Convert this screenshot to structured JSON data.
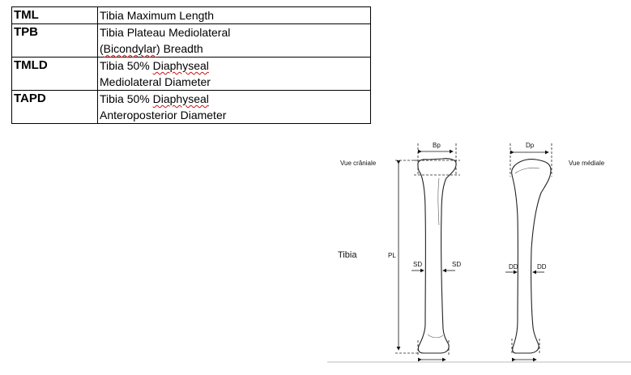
{
  "table": {
    "rows": [
      {
        "code": "TML",
        "desc_lines": [
          [
            "Tibia Maximum Length"
          ]
        ]
      },
      {
        "code": "TPB",
        "desc_lines": [
          [
            "Tibia Plateau Mediolateral"
          ],
          [
            "(",
            "Bicondylar",
            ") Breadth"
          ]
        ]
      },
      {
        "code": "TMLD",
        "desc_lines": [
          [
            "Tibia 50% ",
            "Diaphyseal"
          ],
          [
            "Mediolateral Diameter"
          ]
        ]
      },
      {
        "code": "TAPD",
        "desc_lines": [
          [
            "Tibia 50% ",
            "Diaphyseal"
          ],
          [
            "Anteroposterior Diameter"
          ]
        ]
      }
    ],
    "flagged_words": [
      "Bicondylar",
      "Diaphyseal"
    ]
  },
  "figure": {
    "bone_label": "Tibia",
    "left_view_label": "Vue crâniale",
    "right_view_label": "Vue médiale",
    "measure_bp": "Bp",
    "measure_dp": "Dp",
    "measure_pl": "PL",
    "measure_sd_left": "SD",
    "measure_sd_right": "SD",
    "measure_dd_left": "DD",
    "measure_dd_right": "DD"
  }
}
